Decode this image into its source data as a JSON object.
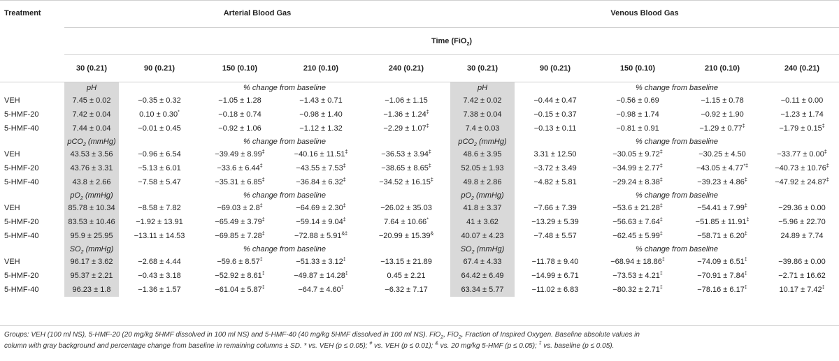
{
  "header": {
    "treatment": "Treatment",
    "arterial": "Arterial Blood Gas",
    "venous": "Venous Blood Gas",
    "time_label": "Time (FiO",
    "time_sub": "2",
    "time_close": ")",
    "timepoints": [
      "30 (0.21)",
      "90 (0.21)",
      "150 (0.10)",
      "210 (0.10)",
      "240 (0.21)"
    ]
  },
  "sections": [
    {
      "param_main": "pH",
      "param_sub": "",
      "param_unit": "",
      "pct_label": "% change from baseline",
      "rows": [
        {
          "label": "VEH",
          "art": [
            [
              "7.45 ± 0.02",
              ""
            ],
            [
              "−0.35 ± 0.32",
              ""
            ],
            [
              "−1.05 ± 1.28",
              ""
            ],
            [
              "−1.43 ± 0.71",
              ""
            ],
            [
              "−1.06 ± 1.15",
              ""
            ]
          ],
          "ven": [
            [
              "7.42 ± 0.02",
              ""
            ],
            [
              "−0.44 ± 0.47",
              ""
            ],
            [
              "−0.56 ± 0.69",
              ""
            ],
            [
              "−1.15 ± 0.78",
              ""
            ],
            [
              "−0.11 ± 0.00",
              ""
            ]
          ]
        },
        {
          "label": "5-HMF-20",
          "art": [
            [
              "7.42 ± 0.04",
              ""
            ],
            [
              "0.10 ± 0.30",
              "*"
            ],
            [
              "−0.18 ± 0.74",
              ""
            ],
            [
              "−0.98 ± 1.40",
              ""
            ],
            [
              "−1.36 ± 1.24",
              "‡"
            ]
          ],
          "ven": [
            [
              "7.38 ± 0.04",
              ""
            ],
            [
              "−0.15 ± 0.37",
              ""
            ],
            [
              "−0.98 ± 1.74",
              ""
            ],
            [
              "−0.92 ± 1.90",
              ""
            ],
            [
              "−1.23 ± 1.74",
              ""
            ]
          ]
        },
        {
          "label": "5-HMF-40",
          "art": [
            [
              "7.44 ± 0.04",
              ""
            ],
            [
              "−0.01 ± 0.45",
              ""
            ],
            [
              "−0.92 ± 1.06",
              ""
            ],
            [
              "−1.12 ± 1.32",
              ""
            ],
            [
              "−2.29 ± 1.07",
              "‡"
            ]
          ],
          "ven": [
            [
              "7.4 ± 0.03",
              ""
            ],
            [
              "−0.13 ± 0.11",
              ""
            ],
            [
              "−0.81 ± 0.91",
              ""
            ],
            [
              "−1.29 ± 0.77",
              "‡"
            ],
            [
              "−1.79 ± 0.15",
              "‡"
            ]
          ]
        }
      ]
    },
    {
      "param_main": "pCO",
      "param_sub": "2",
      "param_unit": " (mmHg)",
      "pct_label": "% change from baseline",
      "rows": [
        {
          "label": "VEH",
          "art": [
            [
              "43.53 ± 3.56",
              ""
            ],
            [
              "−0.96 ± 6.54",
              ""
            ],
            [
              "−39.49 ± 8.99",
              "‡"
            ],
            [
              "−40.16 ± 11.51",
              "‡"
            ],
            [
              "−36.53 ± 3.94",
              "‡"
            ]
          ],
          "ven": [
            [
              "48.6 ± 3.95",
              ""
            ],
            [
              "3.31 ± 12.50",
              ""
            ],
            [
              "−30.05 ± 9.72",
              "‡"
            ],
            [
              "−30.25 ± 4.50",
              ""
            ],
            [
              "−33.77 ± 0.00",
              "‡"
            ]
          ]
        },
        {
          "label": "5-HMF-20",
          "art": [
            [
              "43.76 ± 3.31",
              ""
            ],
            [
              "−5.13 ± 6.01",
              ""
            ],
            [
              "−33.6 ± 6.44",
              "‡"
            ],
            [
              "−43.55 ± 7.53",
              "‡"
            ],
            [
              "−38.65 ± 8.65",
              "‡"
            ]
          ],
          "ven": [
            [
              "52.05 ± 1.93",
              ""
            ],
            [
              "−3.72 ± 3.49",
              ""
            ],
            [
              "−34.99 ± 2.77",
              "‡"
            ],
            [
              "−43.05 ± 4.77",
              "*‡"
            ],
            [
              "−40.73 ± 10.76",
              "‡"
            ]
          ]
        },
        {
          "label": "5-HMF-40",
          "art": [
            [
              "43.8 ± 2.66",
              ""
            ],
            [
              "−7.58 ± 5.47",
              ""
            ],
            [
              "−35.31 ± 6.85",
              "‡"
            ],
            [
              "−36.84 ± 6.32",
              "‡"
            ],
            [
              "−34.52 ± 16.15",
              "‡"
            ]
          ],
          "ven": [
            [
              "49.8 ± 2.86",
              ""
            ],
            [
              "−4.82 ± 5.81",
              ""
            ],
            [
              "−29.24 ± 8.38",
              "‡"
            ],
            [
              "−39.23 ± 4.86",
              "‡"
            ],
            [
              "−47.92 ± 24.87",
              "‡"
            ]
          ]
        }
      ]
    },
    {
      "param_main": "pO",
      "param_sub": "2",
      "param_unit": " (mmHg)",
      "pct_label": "% change from baseline",
      "rows": [
        {
          "label": "VEH",
          "art": [
            [
              "85.78 ± 10.34",
              ""
            ],
            [
              "−8.58 ± 7.82",
              ""
            ],
            [
              "−69.03 ± 2.8",
              "‡"
            ],
            [
              "−64.69 ± 2.30",
              "‡"
            ],
            [
              "−26.02 ± 35.03",
              ""
            ]
          ],
          "ven": [
            [
              "41.8 ± 3.37",
              ""
            ],
            [
              "−7.66 ± 7.39",
              ""
            ],
            [
              "−53.6 ± 21.28",
              "‡"
            ],
            [
              "−54.41 ± 7.99",
              "‡"
            ],
            [
              "−29.36 ± 0.00",
              ""
            ]
          ]
        },
        {
          "label": "5-HMF-20",
          "art": [
            [
              "83.53 ± 10.46",
              ""
            ],
            [
              "−1.92 ± 13.91",
              ""
            ],
            [
              "−65.49 ± 3.79",
              "‡"
            ],
            [
              "−59.14 ± 9.04",
              "‡"
            ],
            [
              "7.64 ± 10.66",
              "*"
            ]
          ],
          "ven": [
            [
              "41 ± 3.62",
              ""
            ],
            [
              "−13.29 ± 5.39",
              ""
            ],
            [
              "−56.63 ± 7.64",
              "‡"
            ],
            [
              "−51.85 ± 11.91",
              "‡"
            ],
            [
              "−5.96 ± 22.70",
              ""
            ]
          ]
        },
        {
          "label": "5-HMF-40",
          "art": [
            [
              "95.9 ± 25.95",
              ""
            ],
            [
              "−13.11 ± 14.53",
              ""
            ],
            [
              "−69.85 ± 7.28",
              "‡"
            ],
            [
              "−72.88 ± 5.91",
              "&‡"
            ],
            [
              "−20.99 ± 15.39",
              "&"
            ]
          ],
          "ven": [
            [
              "40.07 ± 4.23",
              ""
            ],
            [
              "−7.48 ± 5.57",
              ""
            ],
            [
              "−62.45 ± 5.99",
              "‡"
            ],
            [
              "−58.71 ± 6.20",
              "‡"
            ],
            [
              "24.89 ± 7.74",
              ""
            ]
          ]
        }
      ]
    },
    {
      "param_main": "SO",
      "param_sub": "2",
      "param_unit": " (mmHg)",
      "pct_label": "% change from baseline",
      "rows": [
        {
          "label": "VEH",
          "art": [
            [
              "96.17 ± 3.62",
              ""
            ],
            [
              "−2.68 ± 4.44",
              ""
            ],
            [
              "−59.6 ± 8.57",
              "‡"
            ],
            [
              "−51.33 ± 3.12",
              "‡"
            ],
            [
              "−13.15 ± 21.89",
              ""
            ]
          ],
          "ven": [
            [
              "67.4 ± 4.33",
              ""
            ],
            [
              "−11.78 ± 9.40",
              ""
            ],
            [
              "−68.94 ± 18.86",
              "‡"
            ],
            [
              "−74.09 ± 6.51",
              "‡"
            ],
            [
              "−39.86 ± 0.00",
              ""
            ]
          ]
        },
        {
          "label": "5-HMF-20",
          "art": [
            [
              "95.37 ± 2.21",
              ""
            ],
            [
              "−0.43 ± 3.18",
              ""
            ],
            [
              "−52.92 ± 8.61",
              "‡"
            ],
            [
              "−49.87 ± 14.28",
              "‡"
            ],
            [
              "0.45 ± 2.21",
              ""
            ]
          ],
          "ven": [
            [
              "64.42 ± 6.49",
              ""
            ],
            [
              "−14.99 ± 6.71",
              ""
            ],
            [
              "−73.53 ± 4.21",
              "‡"
            ],
            [
              "−70.91 ± 7.84",
              "‡"
            ],
            [
              "−2.71 ± 16.62",
              ""
            ]
          ]
        },
        {
          "label": "5-HMF-40",
          "art": [
            [
              "96.23 ± 1.8",
              ""
            ],
            [
              "−1.36 ± 1.57",
              ""
            ],
            [
              "−61.04 ± 5.87",
              "‡"
            ],
            [
              "−64.7 ± 4.60",
              "‡"
            ],
            [
              "−6.32 ± 7.17",
              ""
            ]
          ],
          "ven": [
            [
              "63.34 ± 5.77",
              ""
            ],
            [
              "−11.02 ± 6.83",
              ""
            ],
            [
              "−80.32 ± 2.71",
              "‡"
            ],
            [
              "−78.16 ± 6.17",
              "‡"
            ],
            [
              "10.17 ± 7.42",
              "‡"
            ]
          ]
        }
      ]
    }
  ],
  "footnote": {
    "line1": "Groups: VEH (100 ml NS), 5-HMF-20 (20 mg/kg 5HMF dissolved in 100 ml NS) and 5-HMF-40 (40 mg/kg 5HMF dissolved in 100 ml NS). FiO",
    "line1_sub": "2",
    "line1b": ", FiO",
    "line1b_sub": "2",
    "line1c": ", Fraction of Inspired Oxygen. Baseline absolute values in",
    "line2a": "column with gray background and percentage change from baseline in remaining columns ± SD. * vs. VEH (p ≤ 0.05); ",
    "sup_hash": "#",
    "line2b": " vs. VEH (p ≤ 0.01); ",
    "sup_amp": "&",
    "line2c": " vs. 20 mg/kg 5-HMF (p ≤ 0.05); ",
    "sup_dag": "‡",
    "line2d": " vs. baseline (p ≤ 0.05)."
  }
}
